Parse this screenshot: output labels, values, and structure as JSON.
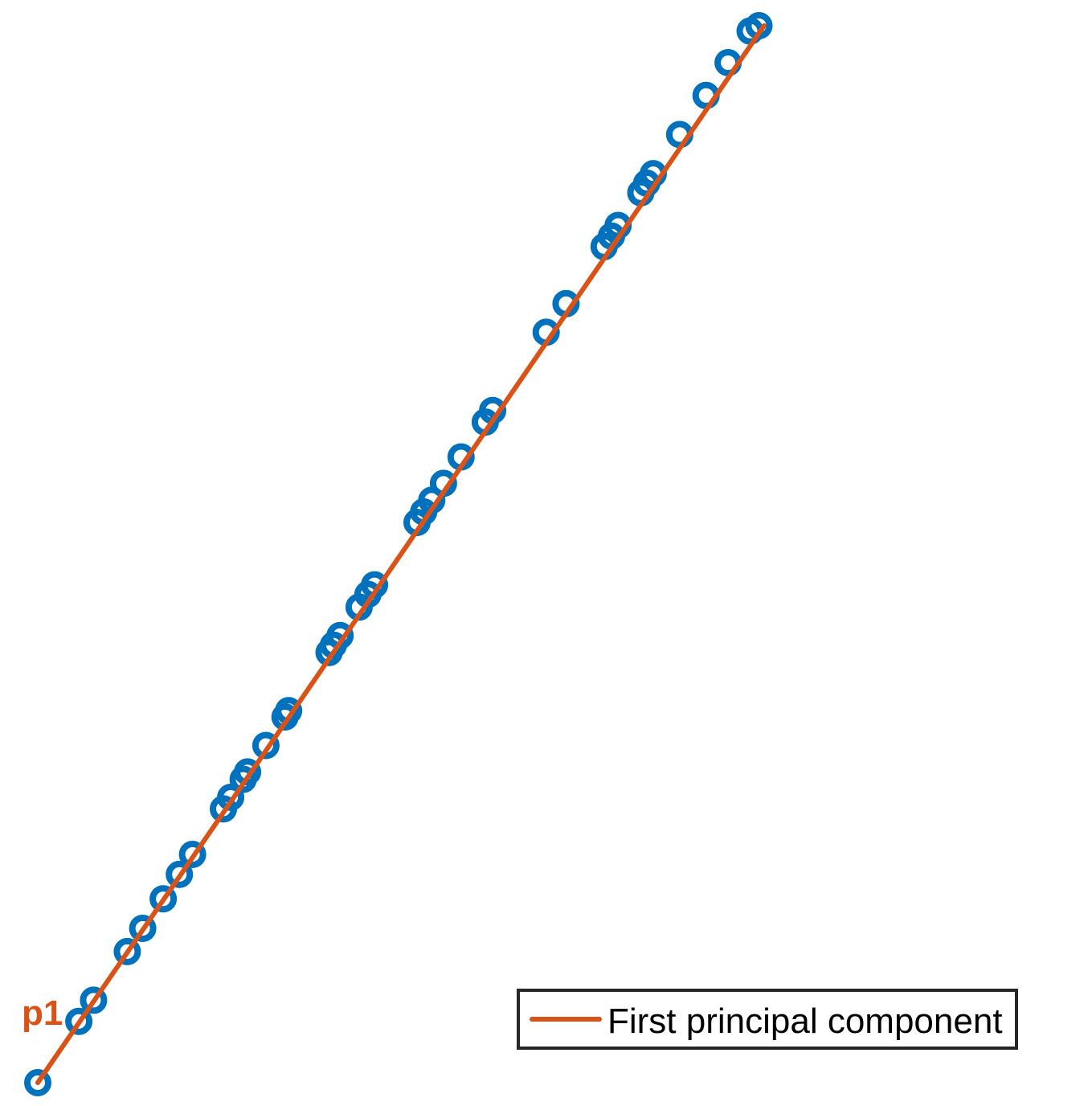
{
  "chart_data": {
    "type": "scatter",
    "colors": {
      "points": "#0072BD",
      "line": "#D95319"
    },
    "grid": false,
    "axes_visible": false,
    "xlim": [
      0,
      1
    ],
    "ylim": [
      0,
      1
    ],
    "series": [
      {
        "kind": "scatter",
        "marker": "circle",
        "points": [
          [
            0.0,
            0.0
          ],
          [
            0.056,
            0.058
          ],
          [
            0.076,
            0.078
          ],
          [
            0.122,
            0.124
          ],
          [
            0.143,
            0.146
          ],
          [
            0.171,
            0.174
          ],
          [
            0.193,
            0.197
          ],
          [
            0.211,
            0.216
          ],
          [
            0.253,
            0.259
          ],
          [
            0.263,
            0.27
          ],
          [
            0.28,
            0.287
          ],
          [
            0.286,
            0.294
          ],
          [
            0.311,
            0.319
          ],
          [
            0.337,
            0.346
          ],
          [
            0.342,
            0.352
          ],
          [
            0.397,
            0.407
          ],
          [
            0.403,
            0.414
          ],
          [
            0.412,
            0.423
          ],
          [
            0.438,
            0.45
          ],
          [
            0.45,
            0.462
          ],
          [
            0.459,
            0.471
          ],
          [
            0.517,
            0.53
          ],
          [
            0.526,
            0.54
          ],
          [
            0.537,
            0.551
          ],
          [
            0.553,
            0.567
          ],
          [
            0.577,
            0.592
          ],
          [
            0.61,
            0.625
          ],
          [
            0.62,
            0.636
          ],
          [
            0.693,
            0.71
          ],
          [
            0.72,
            0.737
          ],
          [
            0.772,
            0.791
          ],
          [
            0.782,
            0.801
          ],
          [
            0.791,
            0.811
          ],
          [
            0.822,
            0.842
          ],
          [
            0.83,
            0.851
          ],
          [
            0.839,
            0.86
          ],
          [
            0.875,
            0.897
          ],
          [
            0.911,
            0.934
          ],
          [
            0.941,
            0.965
          ],
          [
            0.971,
            0.995
          ],
          [
            0.983,
            1.0
          ]
        ]
      },
      {
        "kind": "line",
        "name": "First principal component",
        "from": [
          0.0,
          0.0
        ],
        "to": [
          0.99,
          1.0
        ]
      }
    ],
    "annotations": [
      {
        "text": "p1",
        "at": [
          0.0,
          0.0
        ]
      }
    ],
    "legend": {
      "placement": "bottom-right",
      "entries": [
        "First principal component"
      ]
    }
  }
}
